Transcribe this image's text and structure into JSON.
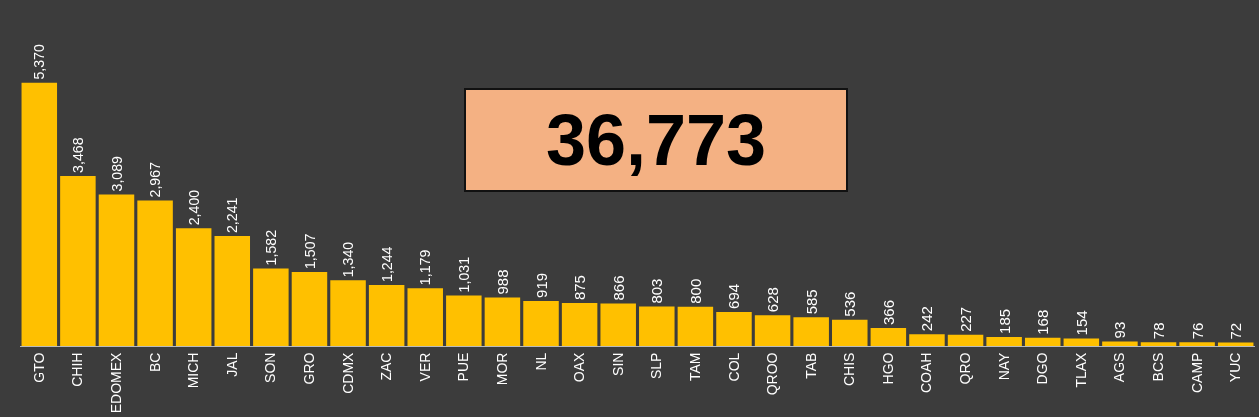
{
  "chart_data": {
    "type": "bar",
    "categories": [
      "GTO",
      "CHIH",
      "EDOMEX",
      "BC",
      "MICH",
      "JAL",
      "SON",
      "GRO",
      "CDMX",
      "ZAC",
      "VER",
      "PUE",
      "MOR",
      "NL",
      "OAX",
      "SIN",
      "SLP",
      "TAM",
      "COL",
      "QROO",
      "TAB",
      "CHIS",
      "HGO",
      "COAH",
      "QRO",
      "NAY",
      "DGO",
      "TLAX",
      "AGS",
      "BCS",
      "CAMP",
      "YUC"
    ],
    "values": [
      5370,
      3468,
      3089,
      2967,
      2400,
      2241,
      1582,
      1507,
      1340,
      1244,
      1179,
      1031,
      988,
      919,
      875,
      866,
      803,
      800,
      694,
      628,
      585,
      536,
      366,
      242,
      227,
      185,
      168,
      154,
      93,
      78,
      76,
      72
    ],
    "value_labels": [
      "5,370",
      "3,468",
      "3,089",
      "2,967",
      "2,400",
      "2,241",
      "1,582",
      "1,507",
      "1,340",
      "1,244",
      "1,179",
      "1,031",
      "988",
      "919",
      "875",
      "866",
      "803",
      "800",
      "694",
      "628",
      "585",
      "536",
      "366",
      "242",
      "227",
      "185",
      "168",
      "154",
      "93",
      "78",
      "76",
      "72"
    ],
    "color": "#ffc000",
    "annotations": [
      "36,773"
    ],
    "grid": false,
    "legend": false
  }
}
